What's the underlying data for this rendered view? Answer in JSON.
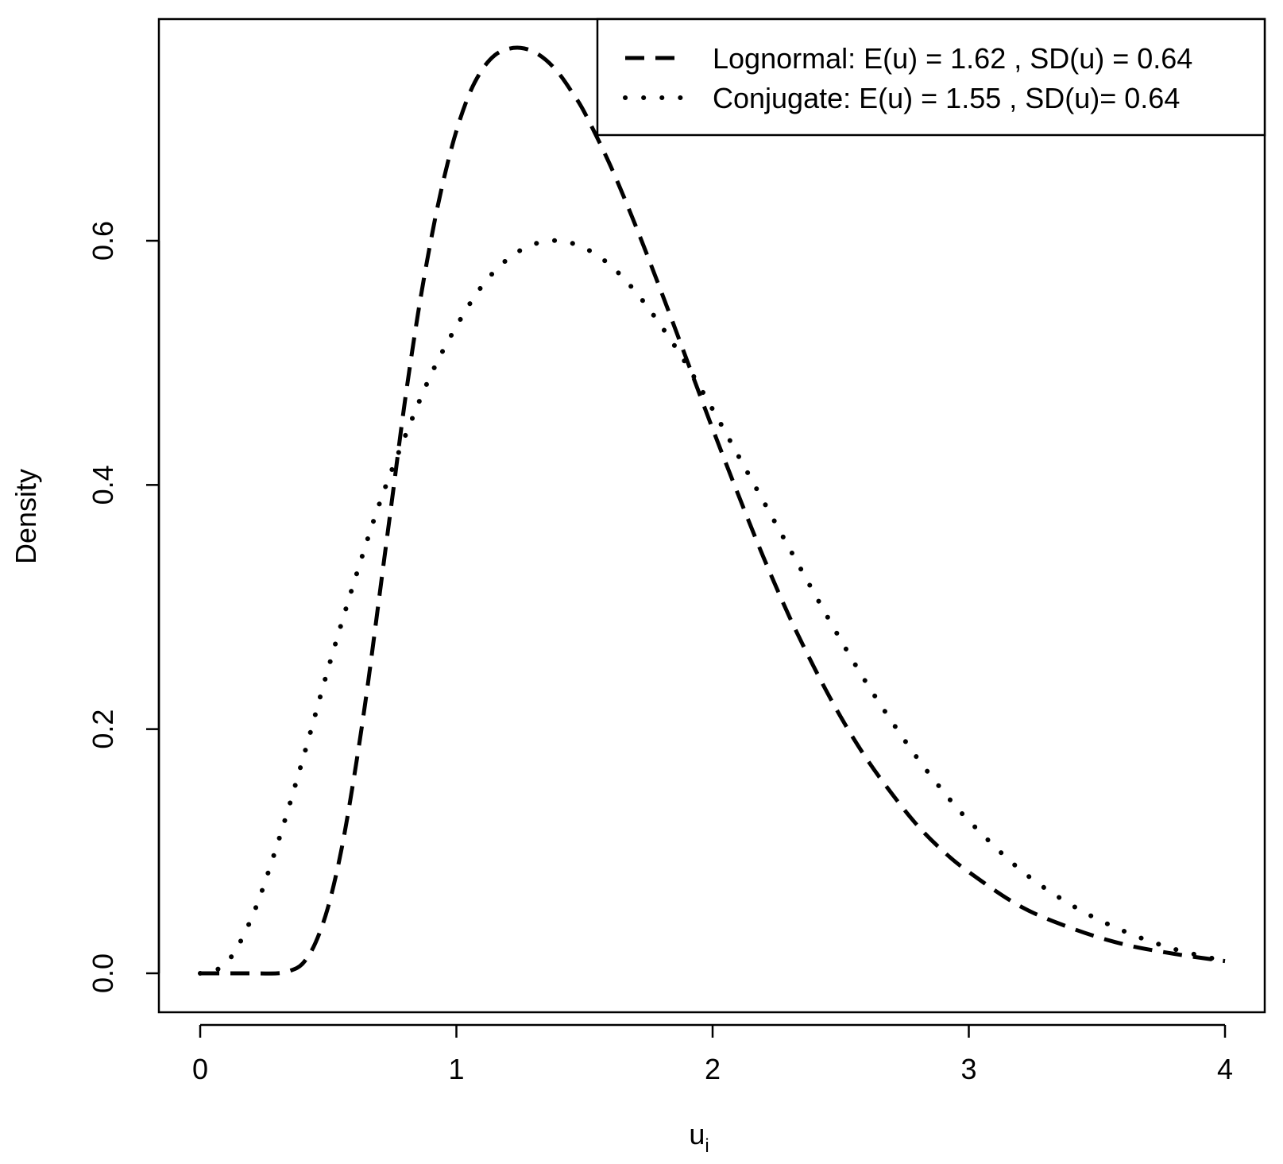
{
  "chart_data": {
    "type": "line",
    "xlabel": "u",
    "xlabel_subscript": "i",
    "ylabel": "Density",
    "xlim": [
      0,
      4
    ],
    "ylim": [
      0,
      0.75
    ],
    "x_ticks": [
      0,
      1,
      2,
      3,
      4
    ],
    "x_tick_labels": [
      "0",
      "1",
      "2",
      "3",
      "4"
    ],
    "y_ticks": [
      0.0,
      0.2,
      0.4,
      0.6
    ],
    "y_tick_labels": [
      "0.0",
      "0.2",
      "0.4",
      "0.6"
    ],
    "grid": false,
    "legend": "top-right",
    "legend_entries": [
      "Lognormal: E(u) = 1.62 , SD(u) = 0.64",
      "Conjugate: E(u) = 1.55 , SD(u)= 0.64"
    ],
    "series": [
      {
        "name": "Lognormal: E(u) = 1.62 , SD(u) = 0.64",
        "style": "dashed",
        "x": [
          0.0,
          0.1,
          0.2,
          0.3,
          0.35,
          0.4,
          0.45,
          0.5,
          0.55,
          0.6,
          0.65,
          0.7,
          0.75,
          0.8,
          0.85,
          0.9,
          0.95,
          1.0,
          1.05,
          1.1,
          1.15,
          1.2,
          1.25,
          1.3,
          1.35,
          1.4,
          1.45,
          1.5,
          1.6,
          1.7,
          1.8,
          1.9,
          2.0,
          2.1,
          2.2,
          2.3,
          2.4,
          2.5,
          2.6,
          2.7,
          2.8,
          2.9,
          3.0,
          3.2,
          3.4,
          3.6,
          3.8,
          4.0
        ],
        "y": [
          0.0,
          0.0,
          0.0,
          0.0,
          0.002,
          0.008,
          0.025,
          0.055,
          0.1,
          0.16,
          0.23,
          0.31,
          0.39,
          0.47,
          0.54,
          0.6,
          0.65,
          0.69,
          0.72,
          0.74,
          0.752,
          0.757,
          0.758,
          0.755,
          0.748,
          0.737,
          0.722,
          0.705,
          0.662,
          0.612,
          0.558,
          0.502,
          0.446,
          0.392,
          0.34,
          0.292,
          0.249,
          0.21,
          0.176,
          0.147,
          0.121,
          0.1,
          0.083,
          0.055,
          0.037,
          0.024,
          0.016,
          0.01
        ]
      },
      {
        "name": "Conjugate: E(u) = 1.55 , SD(u)= 0.64",
        "style": "dotted",
        "x": [
          0.0,
          0.1,
          0.2,
          0.3,
          0.4,
          0.5,
          0.6,
          0.7,
          0.8,
          0.9,
          1.0,
          1.1,
          1.2,
          1.3,
          1.4,
          1.5,
          1.6,
          1.7,
          1.8,
          1.9,
          2.0,
          2.1,
          2.2,
          2.3,
          2.4,
          2.5,
          2.6,
          2.7,
          2.8,
          2.9,
          3.0,
          3.2,
          3.4,
          3.6,
          3.8,
          4.0
        ],
        "y": [
          0.0,
          0.008,
          0.045,
          0.105,
          0.175,
          0.25,
          0.32,
          0.385,
          0.44,
          0.49,
          0.53,
          0.563,
          0.585,
          0.597,
          0.6,
          0.594,
          0.58,
          0.558,
          0.53,
          0.498,
          0.462,
          0.424,
          0.386,
          0.348,
          0.31,
          0.273,
          0.238,
          0.206,
          0.176,
          0.149,
          0.125,
          0.085,
          0.056,
          0.035,
          0.02,
          0.01
        ]
      }
    ]
  }
}
